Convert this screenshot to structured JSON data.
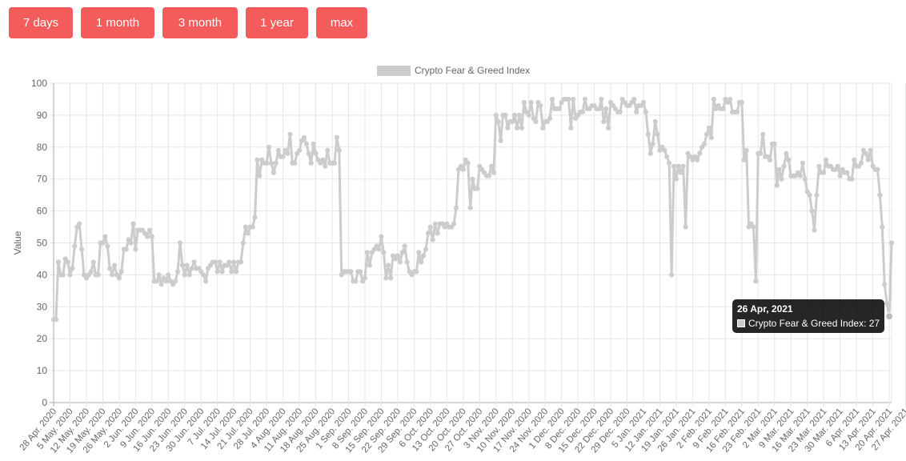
{
  "range_buttons": [
    {
      "label": "7 days"
    },
    {
      "label": "1 month"
    },
    {
      "label": "3 month"
    },
    {
      "label": "1 year"
    },
    {
      "label": "max"
    }
  ],
  "tooltip": {
    "title": "26 Apr, 2021",
    "body": "Crypto Fear & Greed Index: 27"
  },
  "colors": {
    "button": "#f45b5b",
    "series": "#cccccc"
  },
  "chart_data": {
    "type": "line",
    "title": "",
    "ylabel": "Value",
    "xlabel": "",
    "ylim": [
      0,
      100
    ],
    "yticks": [
      0,
      10,
      20,
      30,
      40,
      50,
      60,
      70,
      80,
      90,
      100
    ],
    "grid": true,
    "legend_position": "top",
    "x_tick_labels": [
      "28 Apr. 2020",
      "5 May. 2020",
      "12 May. 2020",
      "19 May. 2020",
      "26 May. 2020",
      "2 Jun. 2020",
      "9 Jun. 2020",
      "16 Jun. 2020",
      "23 Jun. 2020",
      "30 Jun. 2020",
      "7 Jul. 2020",
      "14 Jul. 2020",
      "21 Jul. 2020",
      "28 Jul. 2020",
      "4 Aug. 2020",
      "11 Aug. 2020",
      "18 Aug. 2020",
      "25 Aug. 2020",
      "1 Sep. 2020",
      "8 Sep. 2020",
      "15 Sep. 2020",
      "22 Sep. 2020",
      "29 Sep. 2020",
      "6 Oct. 2020",
      "13 Oct. 2020",
      "20 Oct. 2020",
      "27 Oct. 2020",
      "3 Nov. 2020",
      "10 Nov. 2020",
      "17 Nov. 2020",
      "24 Nov. 2020",
      "1 Dec. 2020",
      "8 Dec. 2020",
      "15 Dec. 2020",
      "22 Dec. 2020",
      "29 Dec. 2020",
      "5 Jan. 2021",
      "12 Jan. 2021",
      "19 Jan. 2021",
      "26 Jan. 2021",
      "2 Feb. 2021",
      "9 Feb. 2021",
      "16 Feb. 2021",
      "23 Feb. 2021",
      "2 Mar. 2021",
      "9 Mar. 2021",
      "16 Mar. 2021",
      "23 Mar. 2021",
      "30 Mar. 2021",
      "6 Apr. 2021",
      "13 Apr. 2021",
      "20 Apr. 2021",
      "27 Apr. 2021"
    ],
    "series": [
      {
        "name": "Crypto Fear & Greed Index",
        "color": "#cccccc",
        "start_date": "28 Apr. 2020",
        "values": [
          26,
          26,
          44,
          40,
          40,
          45,
          44,
          40,
          42,
          49,
          55,
          56,
          48,
          40,
          39,
          40,
          41,
          44,
          40,
          40,
          50,
          50,
          52,
          49,
          42,
          40,
          43,
          40,
          39,
          41,
          48,
          48,
          51,
          50,
          56,
          48,
          54,
          54,
          54,
          53,
          52,
          54,
          52,
          38,
          38,
          40,
          37,
          39,
          38,
          40,
          38,
          37,
          38,
          41,
          50,
          43,
          40,
          43,
          40,
          42,
          44,
          42,
          42,
          41,
          40,
          38,
          42,
          43,
          44,
          44,
          41,
          44,
          41,
          43,
          43,
          44,
          41,
          44,
          41,
          44,
          44,
          50,
          55,
          53,
          55,
          55,
          58,
          76,
          71,
          76,
          75,
          75,
          80,
          75,
          72,
          75,
          79,
          77,
          77,
          79,
          78,
          84,
          75,
          75,
          78,
          79,
          82,
          83,
          81,
          78,
          75,
          81,
          78,
          76,
          75,
          76,
          74,
          79,
          75,
          75,
          75,
          83,
          79,
          40,
          41,
          41,
          41,
          41,
          38,
          38,
          41,
          41,
          38,
          39,
          47,
          43,
          47,
          48,
          49,
          48,
          52,
          47,
          39,
          43,
          39,
          46,
          45,
          46,
          44,
          47,
          49,
          44,
          41,
          40,
          41,
          41,
          47,
          44,
          46,
          48,
          53,
          55,
          51,
          56,
          53,
          56,
          56,
          55,
          56,
          55,
          55,
          56,
          61,
          73,
          74,
          73,
          76,
          75,
          61,
          70,
          67,
          67,
          74,
          73,
          72,
          71,
          71,
          74,
          72,
          90,
          88,
          82,
          90,
          90,
          86,
          88,
          88,
          90,
          86,
          90,
          86,
          94,
          91,
          90,
          94,
          89,
          88,
          94,
          93,
          86,
          88,
          88,
          89,
          95,
          92,
          92,
          92,
          94,
          95,
          95,
          95,
          86,
          95,
          89,
          90,
          91,
          91,
          95,
          92,
          92,
          93,
          93,
          92,
          92,
          95,
          88,
          92,
          86,
          94,
          93,
          92,
          91,
          91,
          95,
          94,
          93,
          93,
          94,
          95,
          91,
          93,
          93,
          94,
          91,
          84,
          78,
          81,
          88,
          84,
          79,
          80,
          79,
          77,
          75,
          40,
          74,
          70,
          74,
          72,
          74,
          55,
          78,
          77,
          76,
          77,
          76,
          78,
          80,
          81,
          84,
          86,
          83,
          95,
          92,
          93,
          92,
          92,
          95,
          94,
          95,
          91,
          91,
          91,
          94,
          94,
          76,
          79,
          55,
          56,
          55,
          38,
          78,
          78,
          84,
          77,
          77,
          76,
          81,
          81,
          68,
          73,
          70,
          74,
          78,
          76,
          71,
          71,
          71,
          72,
          71,
          75,
          70,
          66,
          65,
          60,
          54,
          65,
          74,
          72,
          72,
          76,
          74,
          74,
          73,
          73,
          74,
          71,
          73,
          72,
          72,
          70,
          70,
          76,
          74,
          74,
          75,
          79,
          78,
          76,
          79,
          74,
          73,
          73,
          65,
          55,
          37,
          31,
          27,
          50
        ]
      }
    ],
    "highlighted_point": {
      "date": "26 Apr, 2021",
      "value": 27
    }
  }
}
